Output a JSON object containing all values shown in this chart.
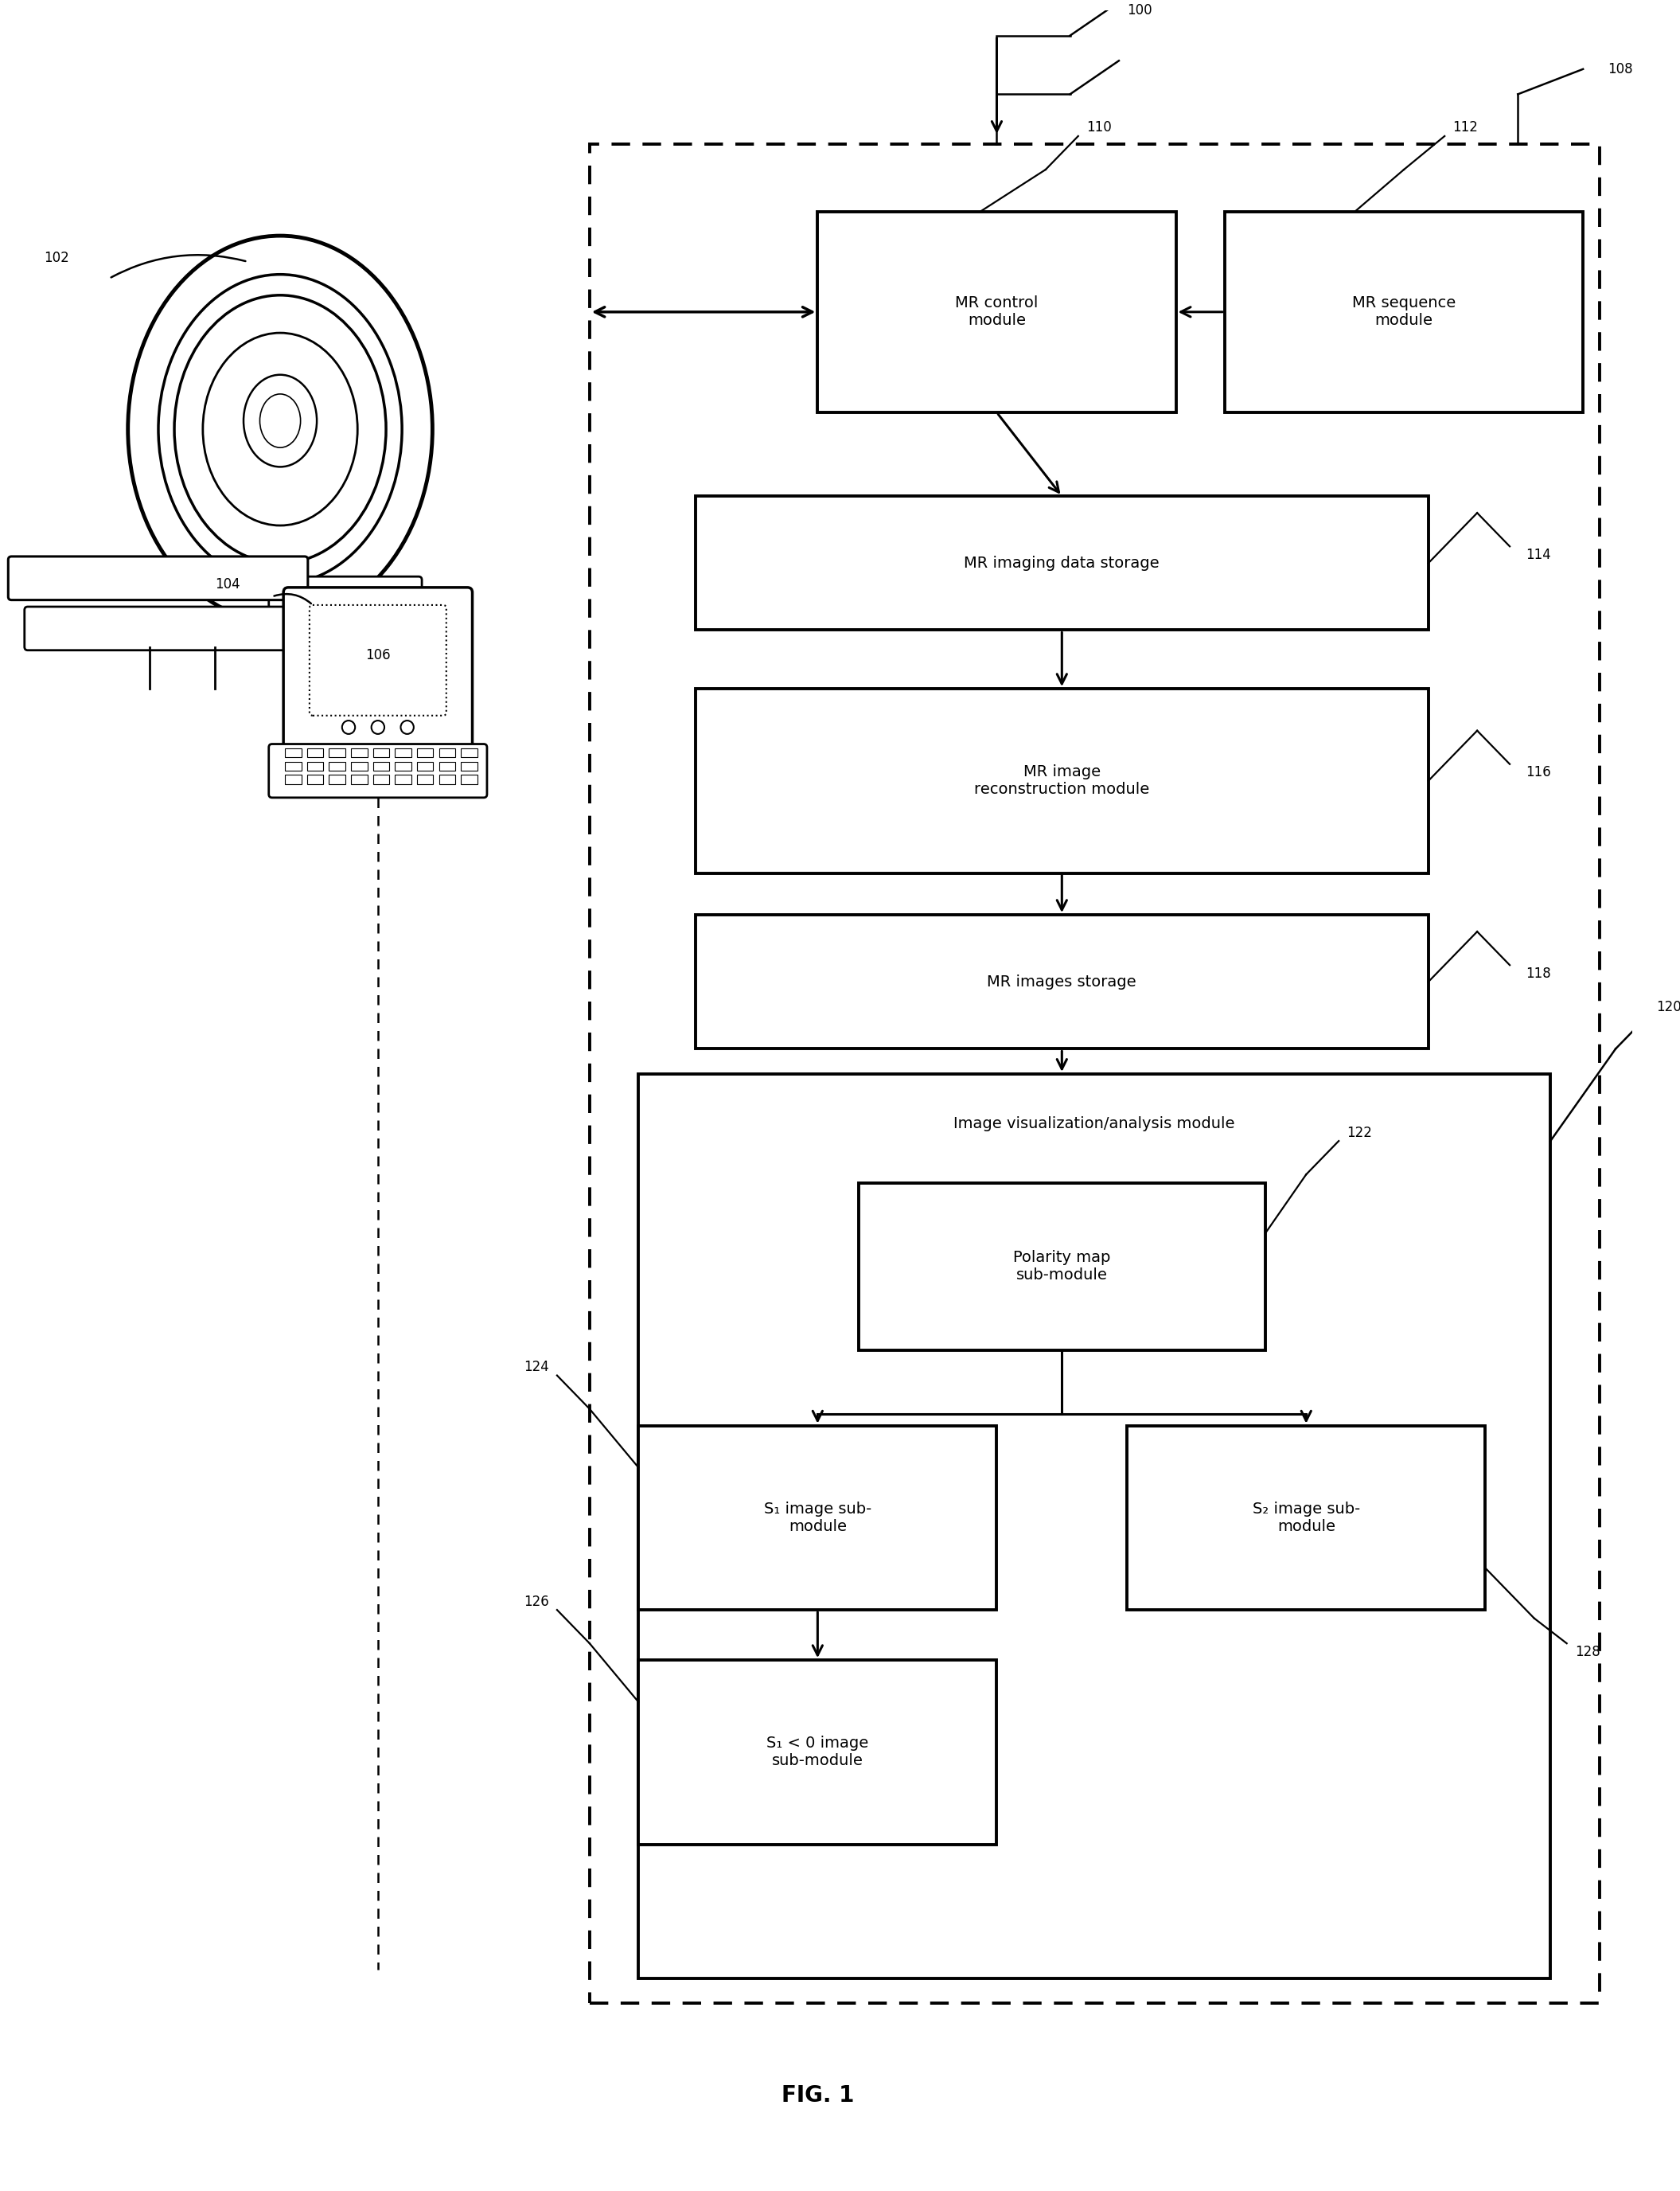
{
  "fig_width": 21.11,
  "fig_height": 27.52,
  "bg_color": "#ffffff",
  "title": "FIG. 1",
  "ref_100": "100",
  "ref_102": "102",
  "ref_104": "104",
  "ref_106": "106",
  "ref_108": "108",
  "ref_110": "110",
  "ref_112": "112",
  "ref_114": "114",
  "ref_116": "116",
  "ref_118": "118",
  "ref_120": "120",
  "ref_122": "122",
  "ref_124": "124",
  "ref_126": "126",
  "ref_128": "128",
  "box_110_label": "MR control\nmodule",
  "box_112_label": "MR sequence\nmodule",
  "box_114_label": "MR imaging data storage",
  "box_116_label": "MR image\nreconstruction module",
  "box_118_label": "MR images storage",
  "box_120_label": "Image visualization/analysis module",
  "box_122_label": "Polarity map\nsub-module",
  "box_124_label": "S₁ image sub-\nmodule",
  "box_126_label": "S₁ < 0 image\nsub-module",
  "box_128_label": "S₂ image sub-\nmodule"
}
